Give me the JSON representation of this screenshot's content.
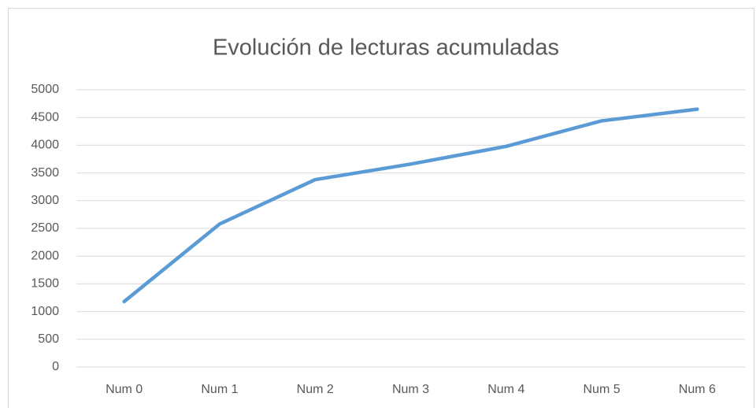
{
  "chart_data": {
    "type": "line",
    "title": "Evolución de lecturas acumuladas",
    "categories": [
      "Num 0",
      "Num 1",
      "Num 2",
      "Num 3",
      "Num 4",
      "Num 5",
      "Num 6"
    ],
    "series": [
      {
        "color": "#5b9bd5",
        "values": [
          1180,
          2580,
          3380,
          3660,
          3980,
          4440,
          4650
        ]
      }
    ],
    "ylim": [
      0,
      5000
    ],
    "yticks": [
      0,
      500,
      1000,
      1500,
      2000,
      2500,
      3000,
      3500,
      4000,
      4500,
      5000
    ],
    "grid": true
  }
}
